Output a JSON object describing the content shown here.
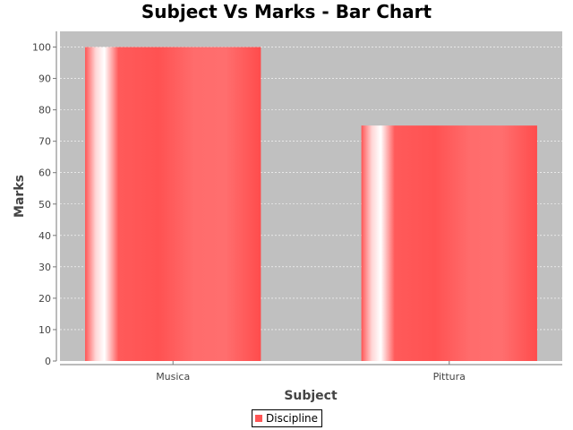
{
  "chart_data": {
    "type": "bar",
    "title": "Subject Vs Marks - Bar Chart",
    "xlabel": "Subject",
    "ylabel": "Marks",
    "categories": [
      "Musica",
      "Pittura"
    ],
    "series": [
      {
        "name": "Discipline",
        "values": [
          100,
          75
        ]
      }
    ],
    "ylim": [
      0,
      105
    ],
    "yticks": [
      0,
      10,
      20,
      30,
      40,
      50,
      60,
      70,
      80,
      90,
      100
    ],
    "grid": true,
    "legend_position": "bottom",
    "colors": {
      "bar": "#ff5555",
      "plot_background": "#c0c0c0",
      "gridline": "#ffffff"
    }
  }
}
